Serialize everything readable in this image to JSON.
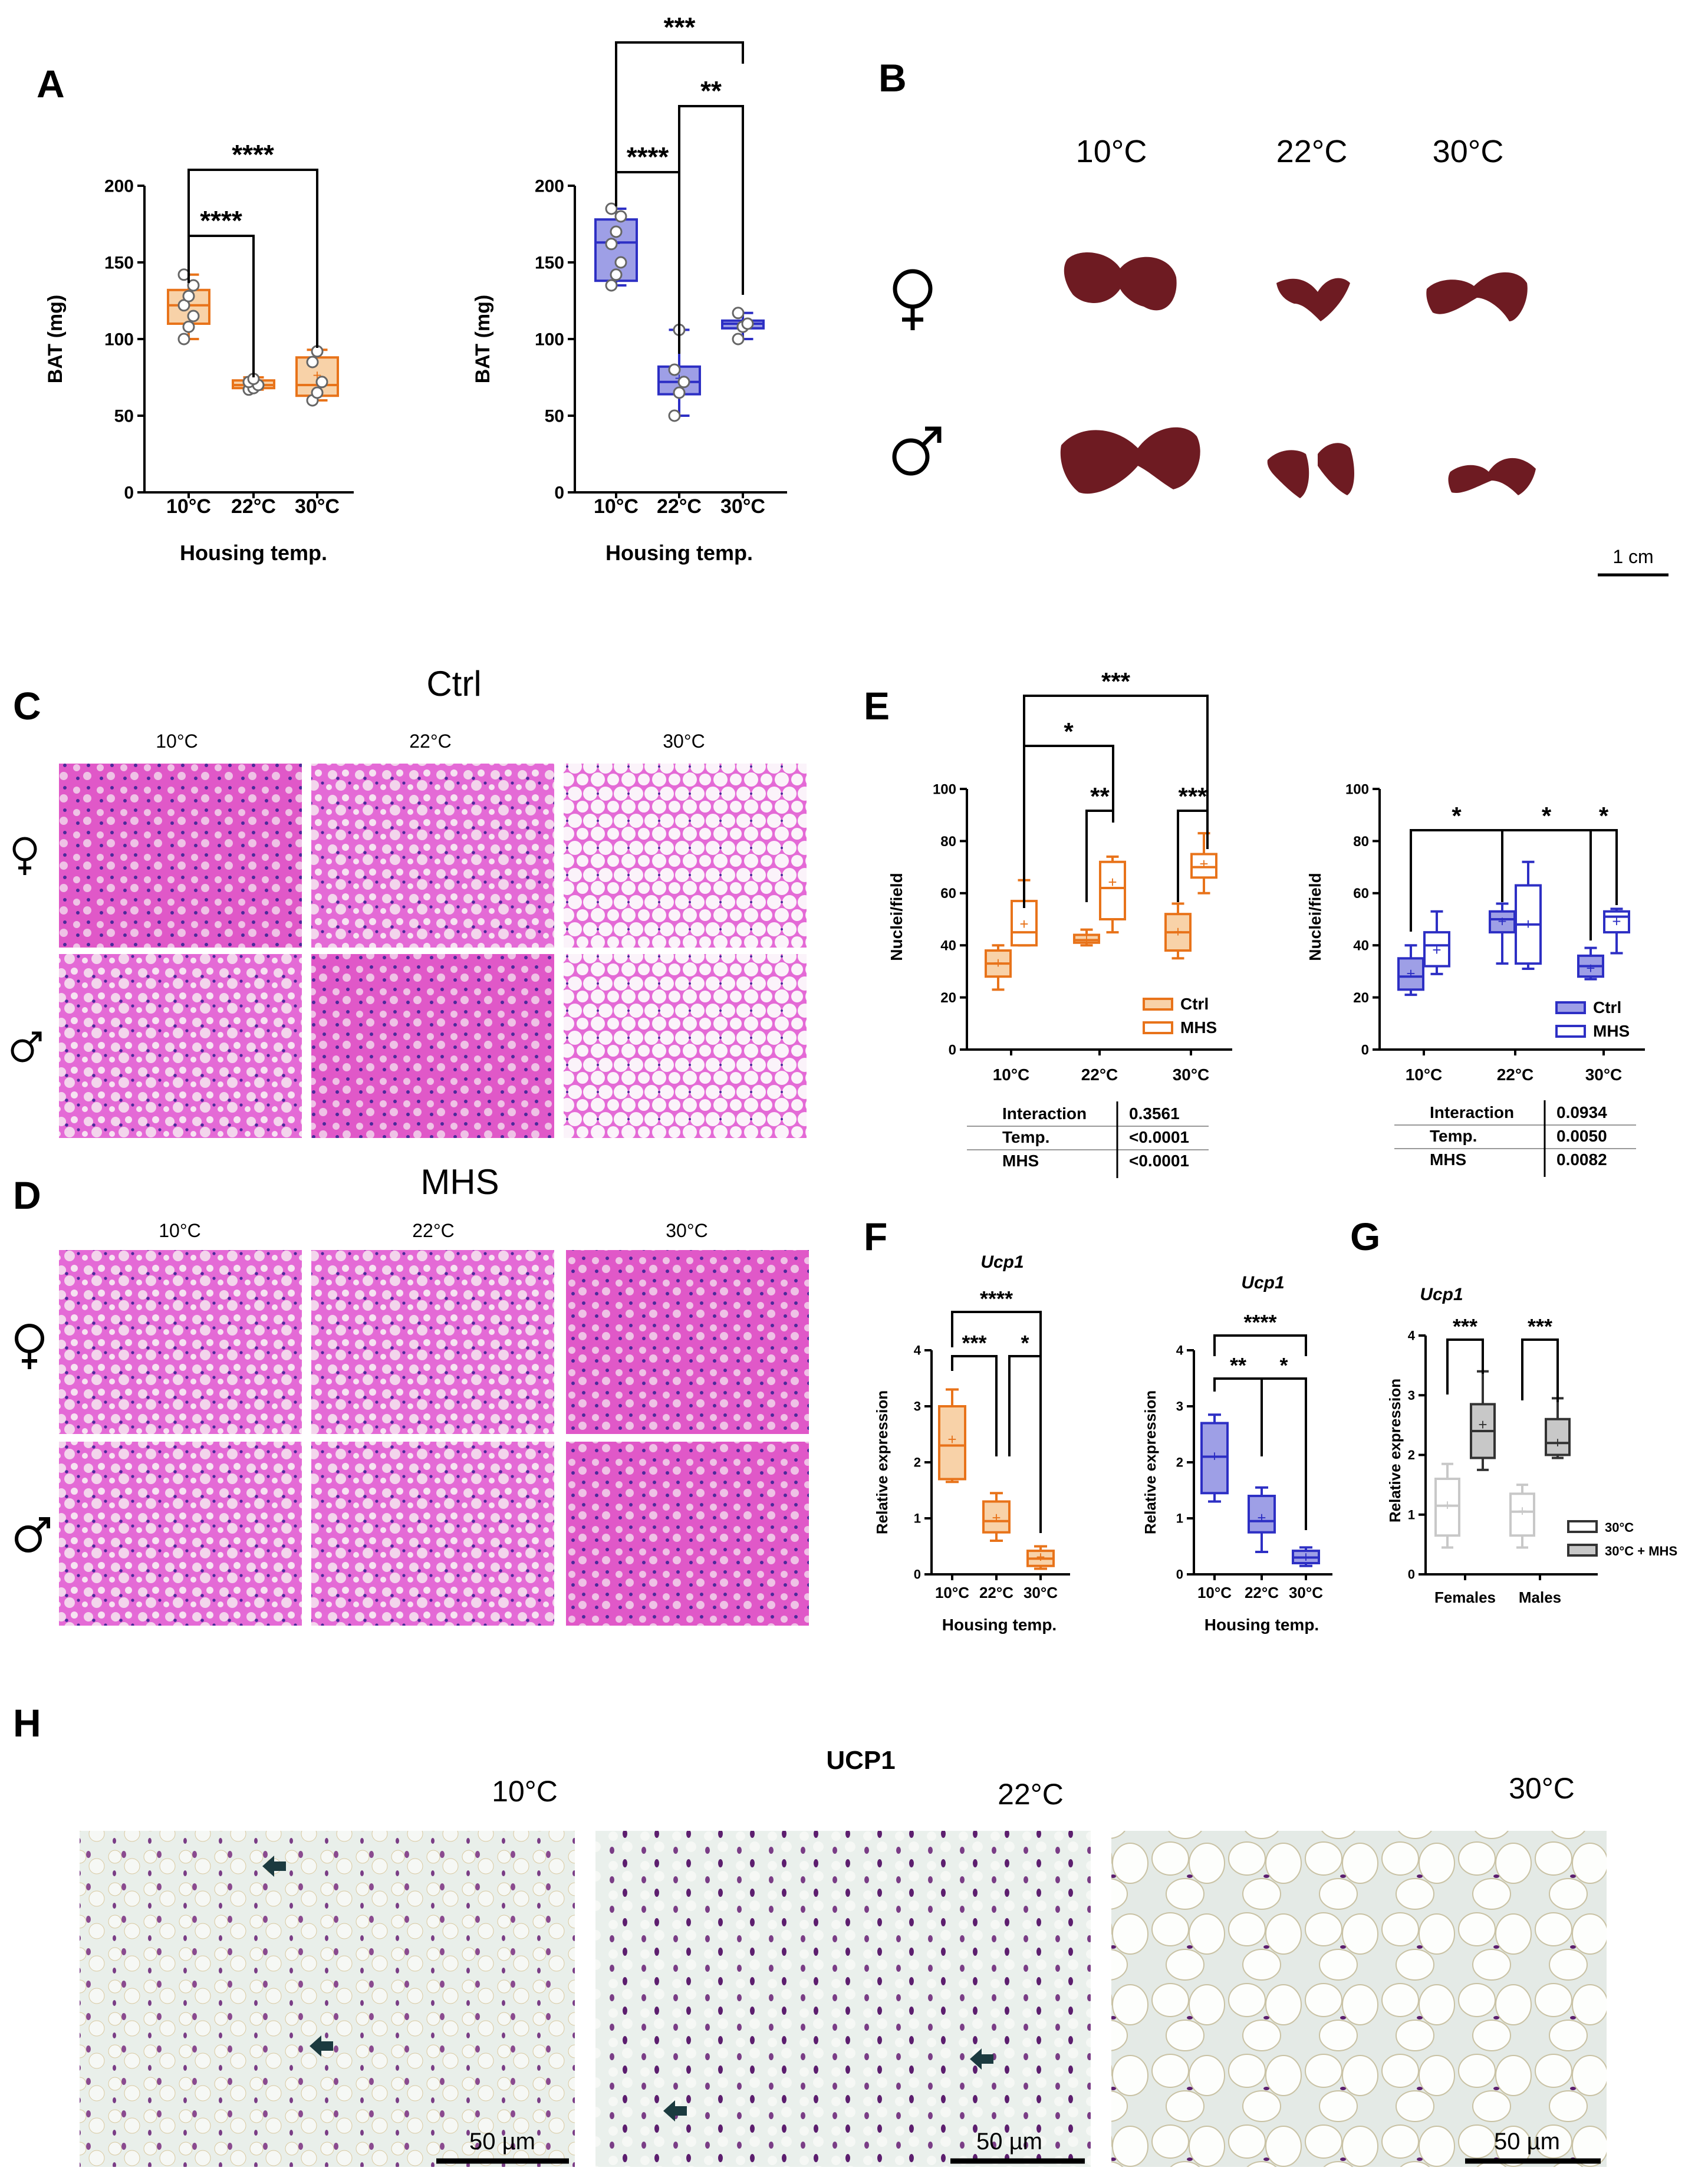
{
  "panel_labels": {
    "A": "A",
    "B": "B",
    "C": "C",
    "D": "D",
    "E": "E",
    "F": "F",
    "G": "G",
    "H": "H"
  },
  "colors": {
    "orange": "#E8731A",
    "orange_light": "#F8D2A8",
    "blue": "#2D2FC4",
    "blue_light": "#9E9FE6",
    "grey": "#C8C8C8",
    "he_pink": "#E46AD6",
    "he_nuclei": "#4A2A9A",
    "tissue": "#6E1B22",
    "ihc_bg": "#E9EFEA",
    "scalebar": "#000000"
  },
  "icons": {
    "female": "female-symbol-icon",
    "male": "male-symbol-icon",
    "arrow": "arrow-left-icon"
  },
  "sig": {
    "s1": "*",
    "s2": "**",
    "s3": "***",
    "s4": "****"
  },
  "panel_b": {
    "temps": [
      "10°C",
      "22°C",
      "30°C"
    ],
    "scale_label": "1 cm"
  },
  "panel_c": {
    "title": "Ctrl",
    "temps": [
      "10°C",
      "22°C",
      "30°C"
    ]
  },
  "panel_d": {
    "title": "MHS",
    "temps": [
      "10°C",
      "22°C",
      "30°C"
    ]
  },
  "panel_h": {
    "title": "UCP1",
    "temps": [
      "10°C",
      "22°C",
      "30°C"
    ],
    "scale_label": "50 µm"
  },
  "stats_e1": [
    [
      "Interaction",
      "0.3561"
    ],
    [
      "Temp.",
      "<0.0001"
    ],
    [
      "MHS",
      "<0.0001"
    ]
  ],
  "stats_e2": [
    [
      "Interaction",
      "0.0934"
    ],
    [
      "Temp.",
      "0.0050"
    ],
    [
      "MHS",
      "0.0082"
    ]
  ],
  "chart_data": [
    {
      "id": "A_female",
      "type": "box",
      "ylabel": "BAT (mg)",
      "xlabel": "Housing temp.",
      "categories": [
        "10°C",
        "22°C",
        "30°C"
      ],
      "ylim": [
        0,
        200
      ],
      "yticks": [
        0,
        50,
        100,
        150,
        200
      ],
      "boxes": [
        {
          "min": 100,
          "q1": 110,
          "med": 122,
          "q3": 132,
          "max": 142,
          "mean": 122,
          "points": [
            100,
            108,
            115,
            122,
            128,
            135,
            142
          ]
        },
        {
          "min": 67,
          "q1": 68,
          "med": 70,
          "q3": 73,
          "max": 75,
          "mean": 70,
          "points": [
            67,
            68,
            70,
            72,
            74
          ]
        },
        {
          "min": 60,
          "q1": 63,
          "med": 70,
          "q3": 88,
          "max": 93,
          "mean": 76,
          "points": [
            60,
            65,
            72,
            85,
            92
          ]
        }
      ],
      "sig": [
        {
          "from": 0,
          "to": 1,
          "label": "****"
        },
        {
          "from": 0,
          "to": 2,
          "label": "****"
        }
      ]
    },
    {
      "id": "A_male",
      "type": "box",
      "ylabel": "BAT (mg)",
      "xlabel": "Housing temp.",
      "categories": [
        "10°C",
        "22°C",
        "30°C"
      ],
      "ylim": [
        0,
        200
      ],
      "yticks": [
        0,
        50,
        100,
        150,
        200
      ],
      "boxes": [
        {
          "min": 135,
          "q1": 138,
          "med": 163,
          "q3": 178,
          "max": 185,
          "mean": 162,
          "points": [
            135,
            142,
            150,
            162,
            170,
            180,
            185
          ]
        },
        {
          "min": 50,
          "q1": 64,
          "med": 72,
          "q3": 82,
          "max": 106,
          "mean": 74,
          "points": [
            50,
            65,
            72,
            80,
            106
          ]
        },
        {
          "min": 100,
          "q1": 107,
          "med": 110,
          "q3": 112,
          "max": 117,
          "mean": 109,
          "points": [
            100,
            108,
            110,
            117
          ]
        }
      ],
      "sig": [
        {
          "from": 0,
          "to": 1,
          "label": "****"
        },
        {
          "from": 1,
          "to": 2,
          "label": "**"
        },
        {
          "from": 0,
          "to": 2,
          "label": "***"
        }
      ]
    },
    {
      "id": "E_female",
      "type": "box",
      "ylabel": "Nuclei/field",
      "categories": [
        "10°C",
        "22°C",
        "30°C"
      ],
      "ylim": [
        0,
        100
      ],
      "yticks": [
        0,
        20,
        40,
        60,
        80,
        100
      ],
      "legend": [
        "Ctrl",
        "MHS"
      ],
      "series": [
        {
          "name": "Ctrl",
          "boxes": [
            {
              "min": 23,
              "q1": 28,
              "med": 33,
              "q3": 38,
              "max": 40,
              "mean": 33
            },
            {
              "min": 40,
              "q1": 41,
              "med": 42,
              "q3": 44,
              "max": 46,
              "mean": 42
            },
            {
              "min": 35,
              "q1": 38,
              "med": 45,
              "q3": 52,
              "max": 56,
              "mean": 45
            }
          ]
        },
        {
          "name": "MHS",
          "boxes": [
            {
              "min": 40,
              "q1": 40,
              "med": 45,
              "q3": 57,
              "max": 65,
              "mean": 48
            },
            {
              "min": 45,
              "q1": 50,
              "med": 62,
              "q3": 72,
              "max": 74,
              "mean": 64
            },
            {
              "min": 60,
              "q1": 66,
              "med": 70,
              "q3": 75,
              "max": 83,
              "mean": 71
            }
          ]
        }
      ],
      "sig": [
        {
          "label": "***"
        },
        {
          "label": "*"
        },
        {
          "label": "**"
        },
        {
          "label": "***"
        }
      ]
    },
    {
      "id": "E_male",
      "type": "box",
      "ylabel": "Nuclei/field",
      "categories": [
        "10°C",
        "22°C",
        "30°C"
      ],
      "ylim": [
        0,
        100
      ],
      "yticks": [
        0,
        20,
        40,
        60,
        80,
        100
      ],
      "legend": [
        "Ctrl",
        "MHS"
      ],
      "series": [
        {
          "name": "Ctrl",
          "boxes": [
            {
              "min": 21,
              "q1": 23,
              "med": 28,
              "q3": 35,
              "max": 40,
              "mean": 29
            },
            {
              "min": 33,
              "q1": 45,
              "med": 50,
              "q3": 53,
              "max": 56,
              "mean": 49
            },
            {
              "min": 27,
              "q1": 28,
              "med": 32,
              "q3": 36,
              "max": 39,
              "mean": 31
            }
          ]
        },
        {
          "name": "MHS",
          "boxes": [
            {
              "min": 29,
              "q1": 32,
              "med": 40,
              "q3": 45,
              "max": 53,
              "mean": 38
            },
            {
              "min": 31,
              "q1": 33,
              "med": 48,
              "q3": 63,
              "max": 72,
              "mean": 48
            },
            {
              "min": 37,
              "q1": 45,
              "med": 51,
              "q3": 53,
              "max": 54,
              "mean": 49
            }
          ]
        }
      ],
      "sig": [
        {
          "label": "*"
        },
        {
          "label": "*"
        },
        {
          "label": "*"
        }
      ]
    },
    {
      "id": "F_female",
      "type": "box",
      "title": "Ucp1",
      "ylabel": "Relative expression",
      "xlabel": "Housing temp.",
      "categories": [
        "10°C",
        "22°C",
        "30°C"
      ],
      "ylim": [
        0,
        4
      ],
      "yticks": [
        0,
        1,
        2,
        3,
        4
      ],
      "boxes": [
        {
          "min": 1.65,
          "q1": 1.7,
          "med": 2.3,
          "q3": 3.0,
          "max": 3.3,
          "mean": 2.4
        },
        {
          "min": 0.6,
          "q1": 0.75,
          "med": 0.95,
          "q3": 1.3,
          "max": 1.45,
          "mean": 1.0
        },
        {
          "min": 0.1,
          "q1": 0.15,
          "med": 0.28,
          "q3": 0.42,
          "max": 0.5,
          "mean": 0.3
        }
      ],
      "sig": [
        {
          "label": "****"
        },
        {
          "label": "***"
        },
        {
          "label": "*"
        }
      ]
    },
    {
      "id": "F_male",
      "type": "box",
      "title": "Ucp1",
      "ylabel": "Relative expression",
      "xlabel": "Housing temp.",
      "categories": [
        "10°C",
        "22°C",
        "30°C"
      ],
      "ylim": [
        0,
        4
      ],
      "yticks": [
        0,
        1,
        2,
        3,
        4
      ],
      "boxes": [
        {
          "min": 1.3,
          "q1": 1.45,
          "med": 2.1,
          "q3": 2.7,
          "max": 2.85,
          "mean": 2.1
        },
        {
          "min": 0.4,
          "q1": 0.75,
          "med": 0.95,
          "q3": 1.4,
          "max": 1.55,
          "mean": 1.0
        },
        {
          "min": 0.15,
          "q1": 0.2,
          "med": 0.3,
          "q3": 0.42,
          "max": 0.48,
          "mean": 0.3
        }
      ],
      "sig": [
        {
          "label": "****"
        },
        {
          "label": "**"
        },
        {
          "label": "*"
        }
      ]
    },
    {
      "id": "G",
      "type": "box",
      "title": "Ucp1",
      "ylabel": "Relative expression",
      "categories": [
        "Females",
        "Males"
      ],
      "ylim": [
        0,
        4
      ],
      "yticks": [
        0,
        1,
        2,
        3,
        4
      ],
      "legend": [
        "30°C",
        "30°C + MHS"
      ],
      "series": [
        {
          "name": "30°C",
          "boxes": [
            {
              "min": 0.45,
              "q1": 0.65,
              "med": 1.15,
              "q3": 1.6,
              "max": 1.85,
              "mean": 1.15
            },
            {
              "min": 0.45,
              "q1": 0.65,
              "med": 1.05,
              "q3": 1.35,
              "max": 1.5,
              "mean": 1.05
            }
          ]
        },
        {
          "name": "30°C + MHS",
          "boxes": [
            {
              "min": 1.75,
              "q1": 1.95,
              "med": 2.4,
              "q3": 2.85,
              "max": 3.4,
              "mean": 2.5
            },
            {
              "min": 1.95,
              "q1": 2.0,
              "med": 2.2,
              "q3": 2.6,
              "max": 2.95,
              "mean": 2.2
            }
          ]
        }
      ],
      "sig": [
        {
          "label": "***"
        },
        {
          "label": "***"
        }
      ]
    }
  ]
}
